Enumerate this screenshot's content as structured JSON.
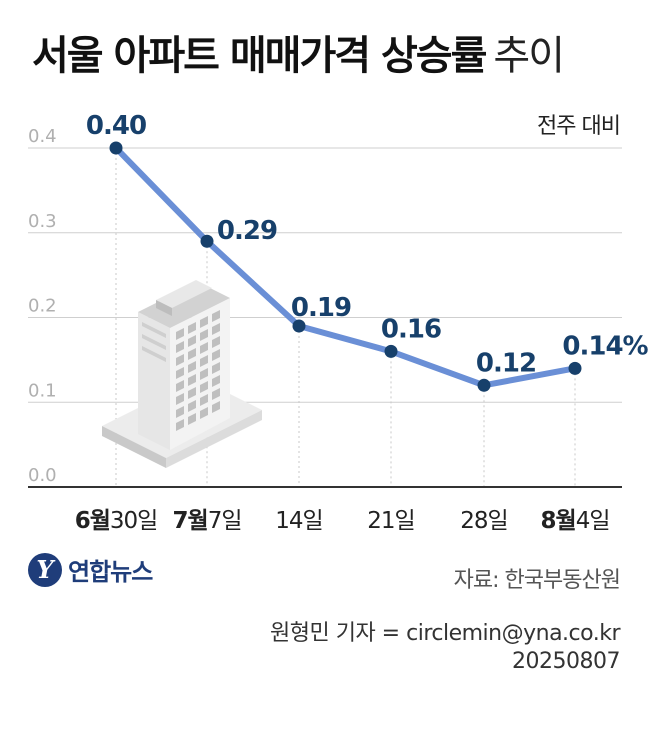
{
  "header": {
    "title_main": "서울 아파트 매매가격 상승률",
    "title_sub": "추이"
  },
  "unit_label": "전주 대비",
  "chart_data": {
    "type": "line",
    "title": "서울 아파트 매매가격 상승률 추이",
    "ylabel": "",
    "xlabel": "",
    "ylim": [
      0,
      0.4
    ],
    "yticks": [
      "0.0",
      "0.1",
      "0.2",
      "0.3",
      "0.4"
    ],
    "categories": [
      {
        "month": "6월",
        "day": "30일"
      },
      {
        "month": "7월",
        "day": "7일"
      },
      {
        "month": "",
        "day": "14일"
      },
      {
        "month": "",
        "day": "21일"
      },
      {
        "month": "",
        "day": "28일"
      },
      {
        "month": "8월",
        "day": "4일"
      }
    ],
    "values": [
      0.4,
      0.29,
      0.19,
      0.16,
      0.12,
      0.14
    ],
    "data_labels": [
      "0.40",
      "0.29",
      "0.19",
      "0.16",
      "0.12",
      "0.14%"
    ],
    "grid": true,
    "line_color": "#6a8fd6",
    "marker_color": "#17406b",
    "label_color": "#17406b"
  },
  "source": "자료: 한국부동산원",
  "logo": {
    "mark": "Y",
    "name": "연합뉴스"
  },
  "credit": {
    "byline": "원형민 기자 = circlemin@yna.co.kr",
    "date": "20250807"
  },
  "illustration": "building-icon"
}
